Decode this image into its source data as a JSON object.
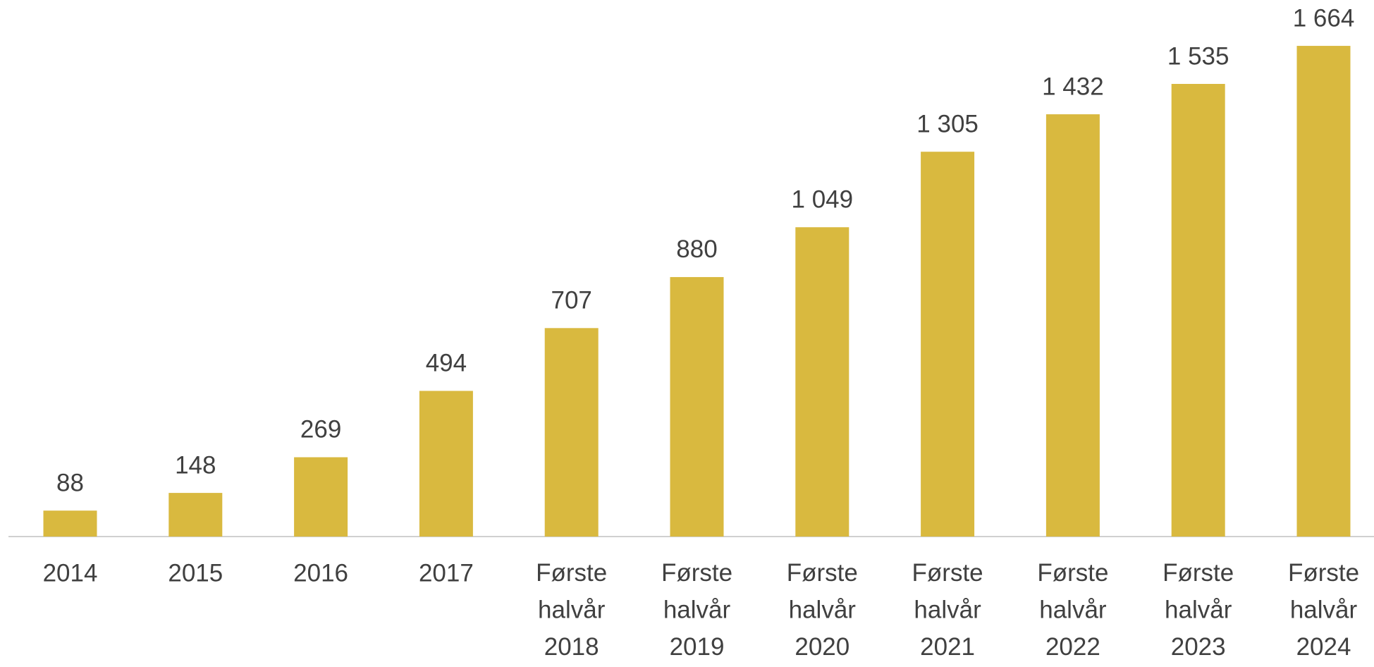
{
  "chart_data": {
    "type": "bar",
    "categories": [
      "2014",
      "2015",
      "2016",
      "2017",
      "Første halvår 2018",
      "Første halvår 2019",
      "Første halvår 2020",
      "Første halvår 2021",
      "Første halvår 2022",
      "Første halvår 2023",
      "Første halvår 2024"
    ],
    "values": [
      88,
      148,
      269,
      494,
      707,
      880,
      1049,
      1305,
      1432,
      1535,
      1664
    ],
    "value_labels": [
      "88",
      "148",
      "269",
      "494",
      "707",
      "880",
      "1 049",
      "1 305",
      "1 432",
      "1 535",
      "1 664"
    ],
    "color": "#d9b93f",
    "ylim": [
      0,
      1700
    ]
  }
}
